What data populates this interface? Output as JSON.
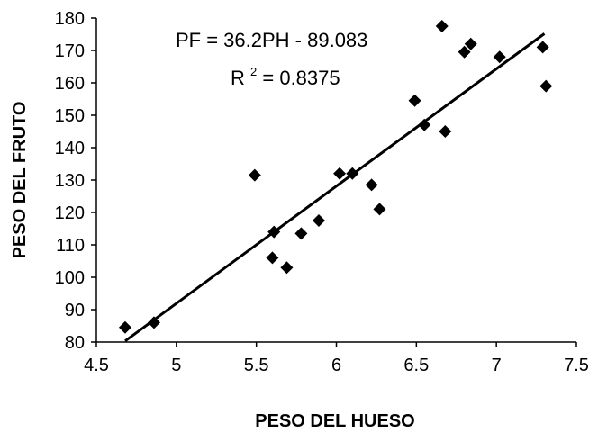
{
  "chart_data": {
    "type": "scatter",
    "title": "",
    "xlabel": "PESO DEL HUESO",
    "ylabel": "PESO DEL FRUTO",
    "xlim": [
      4.5,
      7.5
    ],
    "ylim": [
      80,
      180
    ],
    "xticks": [
      "4.5",
      "5",
      "5.5",
      "6",
      "6.5",
      "7",
      "7.5"
    ],
    "yticks": [
      "80",
      "90",
      "100",
      "110",
      "120",
      "130",
      "140",
      "150",
      "160",
      "170",
      "180"
    ],
    "grid": false,
    "legend": "none",
    "marker": "diamond",
    "marker_color": "#000000",
    "points": [
      {
        "x": 4.68,
        "y": 84.5
      },
      {
        "x": 4.86,
        "y": 86
      },
      {
        "x": 5.49,
        "y": 131.5
      },
      {
        "x": 5.6,
        "y": 106
      },
      {
        "x": 5.61,
        "y": 114
      },
      {
        "x": 5.69,
        "y": 103
      },
      {
        "x": 5.78,
        "y": 113.5
      },
      {
        "x": 5.89,
        "y": 117.5
      },
      {
        "x": 6.02,
        "y": 132
      },
      {
        "x": 6.1,
        "y": 132
      },
      {
        "x": 6.22,
        "y": 128.5
      },
      {
        "x": 6.27,
        "y": 121
      },
      {
        "x": 6.49,
        "y": 154.5
      },
      {
        "x": 6.55,
        "y": 147
      },
      {
        "x": 6.66,
        "y": 177.5
      },
      {
        "x": 6.68,
        "y": 145
      },
      {
        "x": 6.8,
        "y": 169.5
      },
      {
        "x": 6.84,
        "y": 172
      },
      {
        "x": 7.02,
        "y": 168
      },
      {
        "x": 7.29,
        "y": 171
      },
      {
        "x": 7.31,
        "y": 159
      }
    ],
    "trendline": {
      "slope": 36.2,
      "intercept": -89.083,
      "x_range": [
        4.68,
        7.3
      ]
    },
    "annotations": {
      "equation": "PF = 36.2PH - 89.083",
      "r2_label": "R",
      "r2_sup": "2",
      "r2_value": " = 0.8375"
    }
  }
}
